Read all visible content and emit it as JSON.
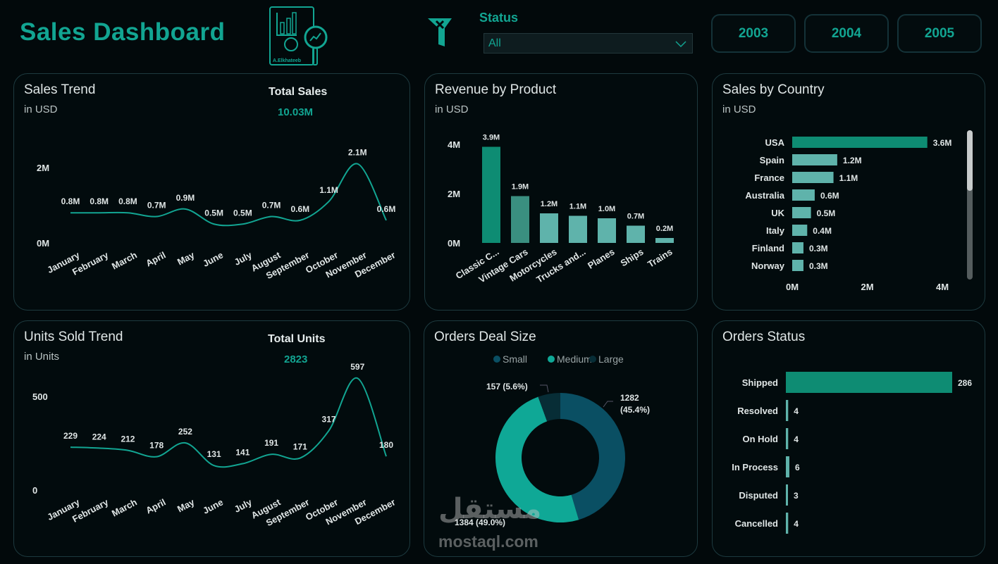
{
  "header": {
    "title": "Sales Dashboard",
    "logo_text": "A.Elkhateeb",
    "filter_label": "Status",
    "filter_value": "All",
    "years": [
      "2003",
      "2004",
      "2005"
    ]
  },
  "colors": {
    "accent": "#12a592",
    "small": "#0a4f63",
    "medium": "#0fa896",
    "large": "#072d36",
    "bar_primary": "#0e8c73",
    "bar_light": "#5fb3ab"
  },
  "watermark": {
    "text": "mostaql.com",
    "arabic": "مستقل"
  },
  "panels": {
    "sales_trend": {
      "title": "Sales Trend",
      "subtitle": "in USD",
      "kpi_label": "Total Sales",
      "kpi_value": "10.03M"
    },
    "revenue": {
      "title": "Revenue by Product",
      "subtitle": "in USD"
    },
    "country": {
      "title": "Sales by Country",
      "subtitle": "in USD"
    },
    "units": {
      "title": "Units Sold Trend",
      "subtitle": "in Units",
      "kpi_label": "Total Units",
      "kpi_value": "2823"
    },
    "deal": {
      "title": "Orders Deal Size"
    },
    "status": {
      "title": "Orders Status"
    }
  },
  "chart_data": [
    {
      "id": "sales_trend",
      "type": "line",
      "categories": [
        "January",
        "February",
        "March",
        "April",
        "May",
        "June",
        "July",
        "August",
        "September",
        "October",
        "November",
        "December"
      ],
      "values": [
        0.8,
        0.8,
        0.8,
        0.7,
        0.9,
        0.5,
        0.5,
        0.7,
        0.6,
        1.1,
        2.1,
        0.6
      ],
      "labels": [
        "0.8M",
        "0.8M",
        "0.8M",
        "0.7M",
        "0.9M",
        "0.5M",
        "0.5M",
        "0.7M",
        "0.6M",
        "1.1M",
        "2.1M",
        "0.6M"
      ],
      "yticks": [
        "0M",
        "2M"
      ],
      "ytick_values": [
        0,
        2
      ],
      "unit": "M USD"
    },
    {
      "id": "revenue",
      "type": "bar",
      "categories": [
        "Classic C...",
        "Vintage Cars",
        "Motorcycles",
        "Trucks and...",
        "Planes",
        "Ships",
        "Trains"
      ],
      "values": [
        3.9,
        1.9,
        1.2,
        1.1,
        1.0,
        0.7,
        0.2
      ],
      "labels": [
        "3.9M",
        "1.9M",
        "1.2M",
        "1.1M",
        "1.0M",
        "0.7M",
        "0.2M"
      ],
      "yticks": [
        "0M",
        "2M",
        "4M"
      ],
      "ytick_values": [
        0,
        2,
        4
      ]
    },
    {
      "id": "country",
      "type": "bar",
      "orientation": "horizontal",
      "categories": [
        "USA",
        "Spain",
        "France",
        "Australia",
        "UK",
        "Italy",
        "Finland",
        "Norway"
      ],
      "values": [
        3.6,
        1.2,
        1.1,
        0.6,
        0.5,
        0.4,
        0.3,
        0.3
      ],
      "labels": [
        "3.6M",
        "1.2M",
        "1.1M",
        "0.6M",
        "0.5M",
        "0.4M",
        "0.3M",
        "0.3M"
      ],
      "xticks": [
        "0M",
        "2M",
        "4M"
      ],
      "xtick_values": [
        0,
        2,
        4
      ]
    },
    {
      "id": "units",
      "type": "line",
      "categories": [
        "January",
        "February",
        "March",
        "April",
        "May",
        "June",
        "July",
        "August",
        "September",
        "October",
        "November",
        "December"
      ],
      "values": [
        229,
        224,
        212,
        178,
        252,
        131,
        141,
        191,
        171,
        317,
        597,
        180
      ],
      "labels": [
        "229",
        "224",
        "212",
        "178",
        "252",
        "131",
        "141",
        "191",
        "171",
        "317",
        "597",
        "180"
      ],
      "yticks": [
        "0",
        "500"
      ],
      "ytick_values": [
        0,
        500
      ]
    },
    {
      "id": "deal",
      "type": "pie",
      "donut": true,
      "legend": [
        "Small",
        "Medium",
        "Large"
      ],
      "legend_position": "top",
      "values": [
        1282,
        1384,
        157
      ],
      "labels": [
        "1282 (45.4%)",
        "1384 (49.0%)",
        "157 (5.6%)"
      ]
    },
    {
      "id": "status",
      "type": "bar",
      "orientation": "horizontal",
      "categories": [
        "Shipped",
        "Resolved",
        "On Hold",
        "In Process",
        "Disputed",
        "Cancelled"
      ],
      "values": [
        286,
        4,
        4,
        6,
        3,
        4
      ],
      "labels": [
        "286",
        "4",
        "4",
        "6",
        "3",
        "4"
      ]
    }
  ]
}
